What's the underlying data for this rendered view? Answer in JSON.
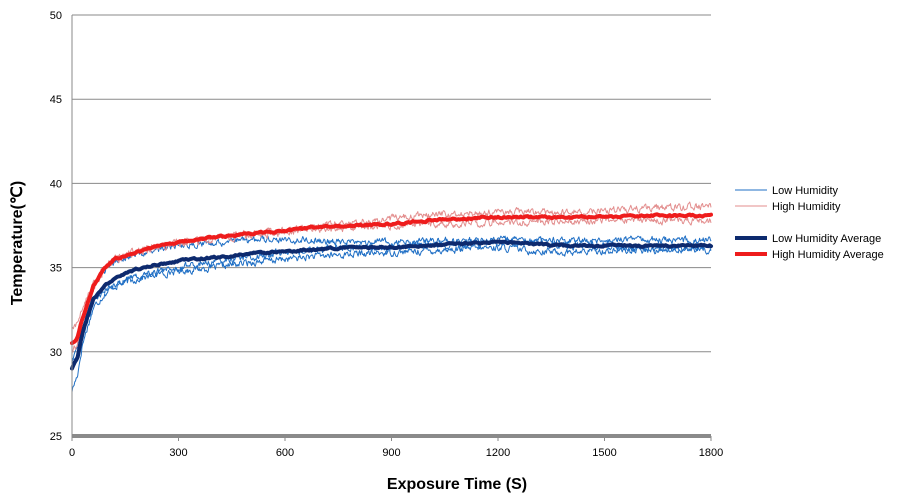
{
  "chart_data": {
    "type": "line",
    "title": "",
    "xlabel": "Exposure Time (S)",
    "ylabel": "Temperature(℃)",
    "xlim": [
      0,
      1800
    ],
    "ylim": [
      25,
      50
    ],
    "xticks": [
      "0",
      "300",
      "600",
      "900",
      "1200",
      "1500",
      "1800"
    ],
    "yticks": [
      "25",
      "30",
      "35",
      "40",
      "45",
      "50"
    ],
    "grid": "horizontal",
    "legend": "right",
    "series": [
      {
        "name": "Low Humidity",
        "color": "#1f6fc5",
        "role": "trial",
        "x": [
          0,
          15,
          30,
          60,
          90,
          120,
          180,
          240,
          300,
          400,
          500,
          600,
          700,
          800,
          900,
          1000,
          1100,
          1200,
          1300,
          1400,
          1500,
          1600,
          1700,
          1800
        ],
        "y": [
          27.7,
          28.6,
          30.5,
          32.6,
          33.4,
          33.9,
          34.3,
          34.6,
          34.8,
          35.0,
          35.3,
          35.5,
          35.7,
          35.8,
          35.9,
          36.0,
          36.1,
          36.2,
          36.0,
          35.9,
          36.0,
          36.0,
          36.1,
          36.0
        ]
      },
      {
        "name": "",
        "color": "#1f6fc5",
        "role": "trial",
        "x": [
          0,
          15,
          30,
          60,
          90,
          120,
          180,
          240,
          300,
          400,
          500,
          600,
          700,
          800,
          900,
          1000,
          1100,
          1200,
          1300,
          1400,
          1500,
          1600,
          1700,
          1800
        ],
        "y": [
          29.6,
          30.5,
          32.0,
          33.8,
          34.8,
          35.4,
          35.8,
          36.1,
          36.3,
          36.5,
          36.6,
          36.7,
          36.6,
          36.5,
          36.5,
          36.6,
          36.6,
          36.7,
          36.6,
          36.6,
          36.6,
          36.7,
          36.6,
          36.6
        ]
      },
      {
        "name": "",
        "color": "#1f6fc5",
        "role": "trial",
        "x": [
          0,
          15,
          30,
          60,
          90,
          120,
          180,
          240,
          300,
          400,
          500,
          600,
          700,
          800,
          900,
          1000,
          1100,
          1200,
          1300,
          1400,
          1500,
          1600,
          1700,
          1800
        ],
        "y": [
          29.2,
          29.8,
          31.0,
          32.8,
          33.6,
          34.0,
          34.5,
          34.8,
          35.0,
          35.4,
          35.6,
          35.9,
          36.1,
          36.2,
          36.2,
          36.4,
          36.4,
          36.5,
          36.5,
          36.3,
          36.3,
          36.2,
          36.2,
          36.2
        ]
      },
      {
        "name": "High Humidity",
        "color": "#e38e8e",
        "role": "trial",
        "x": [
          0,
          15,
          30,
          60,
          90,
          120,
          180,
          240,
          300,
          400,
          500,
          600,
          700,
          800,
          900,
          1000,
          1100,
          1200,
          1300,
          1400,
          1500,
          1600,
          1700,
          1800
        ],
        "y": [
          31.3,
          31.7,
          32.6,
          34.0,
          35.0,
          35.5,
          36.0,
          36.3,
          36.5,
          36.8,
          37.0,
          37.2,
          37.5,
          37.7,
          37.9,
          38.1,
          38.2,
          38.3,
          38.3,
          38.3,
          38.4,
          38.5,
          38.6,
          38.6
        ]
      },
      {
        "name": "",
        "color": "#e38e8e",
        "role": "trial",
        "x": [
          0,
          15,
          30,
          60,
          90,
          120,
          180,
          240,
          300,
          400,
          500,
          600,
          700,
          800,
          900,
          1000,
          1100,
          1200,
          1300,
          1400,
          1500,
          1600,
          1700,
          1800
        ],
        "y": [
          30.0,
          30.4,
          31.8,
          33.7,
          34.8,
          35.4,
          35.9,
          36.2,
          36.4,
          36.7,
          36.9,
          37.1,
          37.3,
          37.4,
          37.5,
          37.6,
          37.6,
          37.7,
          37.7,
          37.8,
          37.8,
          37.8,
          37.8,
          37.8
        ]
      },
      {
        "name": "Low Humidity Average",
        "color": "#0d2a6e",
        "role": "average",
        "x": [
          0,
          15,
          30,
          60,
          90,
          120,
          180,
          240,
          300,
          400,
          500,
          600,
          700,
          800,
          900,
          1000,
          1100,
          1200,
          1300,
          1400,
          1500,
          1600,
          1700,
          1800
        ],
        "y": [
          29.0,
          29.6,
          31.2,
          33.1,
          33.9,
          34.4,
          34.9,
          35.2,
          35.4,
          35.6,
          35.8,
          36.0,
          36.1,
          36.2,
          36.2,
          36.3,
          36.4,
          36.5,
          36.4,
          36.3,
          36.3,
          36.3,
          36.3,
          36.3
        ]
      },
      {
        "name": "High Humidity Average",
        "color": "#ee1c1c",
        "role": "average",
        "x": [
          0,
          15,
          30,
          60,
          90,
          120,
          180,
          240,
          300,
          400,
          500,
          600,
          700,
          800,
          900,
          1000,
          1100,
          1200,
          1300,
          1400,
          1500,
          1600,
          1700,
          1800
        ],
        "y": [
          30.5,
          30.8,
          32.0,
          33.9,
          34.9,
          35.5,
          35.9,
          36.3,
          36.5,
          36.8,
          37.0,
          37.2,
          37.4,
          37.5,
          37.6,
          37.8,
          37.9,
          38.0,
          38.0,
          38.0,
          38.0,
          38.1,
          38.1,
          38.1
        ]
      }
    ]
  }
}
